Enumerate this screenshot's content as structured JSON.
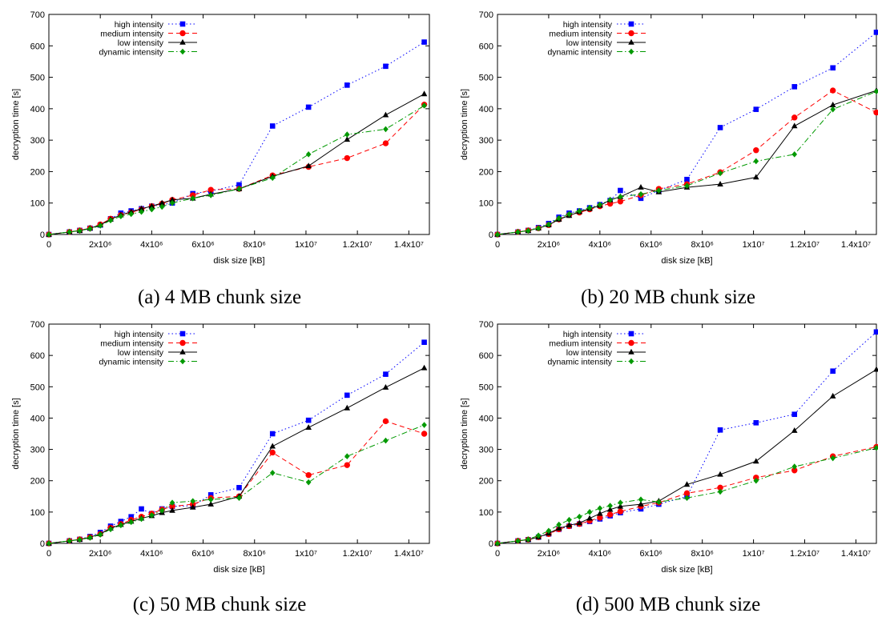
{
  "figure": {
    "captions": [
      "(a) 4 MB chunk size",
      "(b) 20 MB chunk size",
      "(c) 50 MB chunk size",
      "(d) 500 MB chunk size"
    ]
  },
  "colors": {
    "high intensity": "#0000ff",
    "medium intensity": "#ff0000",
    "low intensity": "#000000",
    "dynamic intensity": "#009900"
  },
  "chart_data": [
    {
      "type": "line",
      "caption": "(a) 4 MB chunk size",
      "xlabel": "disk size [kB]",
      "ylabel": "decryption time [s]",
      "xlim": [
        0,
        14800000
      ],
      "ylim": [
        0,
        700
      ],
      "xticks": [
        0,
        2000000,
        4000000,
        6000000,
        8000000,
        10000000,
        12000000,
        14000000
      ],
      "xtick_labels": [
        "0",
        "2x10⁶",
        "4x10⁶",
        "6x10⁶",
        "8x10⁶",
        "1x10⁷",
        "1.2x10⁷",
        "1.4x10⁷"
      ],
      "yticks": [
        0,
        100,
        200,
        300,
        400,
        500,
        600,
        700
      ],
      "ytick_labels": [
        "0",
        "100",
        "200",
        "300",
        "400",
        "500",
        "600",
        "700"
      ],
      "legend_position": "top-left",
      "series": [
        {
          "name": "high intensity",
          "style": "dotted",
          "marker": "square",
          "x": [
            0,
            800000,
            1200000,
            1600000,
            2000000,
            2400000,
            2800000,
            3200000,
            3600000,
            4000000,
            4400000,
            4800000,
            5600000,
            6300000,
            7400000,
            8700000,
            10100000,
            11600000,
            13100000,
            14600000
          ],
          "y": [
            0,
            8,
            13,
            20,
            30,
            50,
            68,
            75,
            82,
            90,
            95,
            100,
            130,
            138,
            158,
            345,
            405,
            475,
            535,
            612
          ]
        },
        {
          "name": "medium intensity",
          "style": "dashed",
          "marker": "circle",
          "x": [
            0,
            800000,
            1200000,
            1600000,
            2000000,
            2400000,
            2800000,
            3200000,
            3600000,
            4000000,
            4400000,
            4800000,
            5600000,
            6300000,
            7400000,
            8700000,
            10100000,
            11600000,
            13100000,
            14600000
          ],
          "y": [
            0,
            8,
            13,
            20,
            32,
            50,
            62,
            70,
            80,
            90,
            98,
            110,
            125,
            142,
            145,
            188,
            215,
            243,
            290,
            413
          ]
        },
        {
          "name": "low intensity",
          "style": "solid",
          "marker": "triangle",
          "x": [
            0,
            800000,
            1200000,
            1600000,
            2000000,
            2400000,
            2800000,
            3200000,
            3600000,
            4000000,
            4400000,
            4800000,
            5600000,
            6300000,
            7400000,
            8700000,
            10100000,
            11600000,
            13100000,
            14600000
          ],
          "y": [
            0,
            8,
            12,
            20,
            30,
            48,
            62,
            72,
            82,
            90,
            100,
            110,
            115,
            128,
            145,
            185,
            218,
            302,
            380,
            447
          ]
        },
        {
          "name": "dynamic intensity",
          "style": "dashdot",
          "marker": "diamond",
          "x": [
            0,
            800000,
            1200000,
            1600000,
            2000000,
            2400000,
            2800000,
            3200000,
            3600000,
            4000000,
            4400000,
            4800000,
            5600000,
            6300000,
            7400000,
            8700000,
            10100000,
            11600000,
            13100000,
            14600000
          ],
          "y": [
            0,
            8,
            12,
            18,
            28,
            45,
            58,
            65,
            72,
            80,
            88,
            100,
            115,
            125,
            145,
            180,
            255,
            318,
            335,
            410
          ]
        }
      ]
    },
    {
      "type": "line",
      "caption": "(b) 20 MB chunk size",
      "xlabel": "disk size [kB]",
      "ylabel": "decryption time [s]",
      "xlim": [
        0,
        14800000
      ],
      "ylim": [
        0,
        700
      ],
      "xticks": [
        0,
        2000000,
        4000000,
        6000000,
        8000000,
        10000000,
        12000000,
        14000000
      ],
      "xtick_labels": [
        "0",
        "2x10⁶",
        "4x10⁶",
        "6x10⁶",
        "8x10⁶",
        "1x10⁷",
        "1.2x10⁷",
        "1.4x10⁷"
      ],
      "yticks": [
        0,
        100,
        200,
        300,
        400,
        500,
        600,
        700
      ],
      "ytick_labels": [
        "0",
        "100",
        "200",
        "300",
        "400",
        "500",
        "600",
        "700"
      ],
      "legend_position": "top-left",
      "series": [
        {
          "name": "high intensity",
          "style": "dotted",
          "marker": "square",
          "x": [
            0,
            800000,
            1200000,
            1600000,
            2000000,
            2400000,
            2800000,
            3200000,
            3600000,
            4000000,
            4400000,
            4800000,
            5600000,
            6300000,
            7400000,
            8700000,
            10100000,
            11600000,
            13100000,
            14800000
          ],
          "y": [
            0,
            8,
            13,
            22,
            35,
            55,
            68,
            75,
            85,
            95,
            108,
            140,
            115,
            140,
            175,
            340,
            398,
            470,
            530,
            643
          ]
        },
        {
          "name": "medium intensity",
          "style": "dashed",
          "marker": "circle",
          "x": [
            0,
            800000,
            1200000,
            1600000,
            2000000,
            2400000,
            2800000,
            3200000,
            3600000,
            4000000,
            4400000,
            4800000,
            5600000,
            6300000,
            7400000,
            8700000,
            10100000,
            11600000,
            13100000,
            14800000
          ],
          "y": [
            0,
            8,
            13,
            20,
            30,
            48,
            62,
            70,
            80,
            90,
            98,
            105,
            125,
            145,
            160,
            198,
            268,
            372,
            458,
            388
          ]
        },
        {
          "name": "low intensity",
          "style": "solid",
          "marker": "triangle",
          "x": [
            0,
            800000,
            1200000,
            1600000,
            2000000,
            2400000,
            2800000,
            3200000,
            3600000,
            4000000,
            4400000,
            4800000,
            5600000,
            6300000,
            7400000,
            8700000,
            10100000,
            11600000,
            13100000,
            14800000
          ],
          "y": [
            0,
            8,
            12,
            20,
            30,
            48,
            60,
            72,
            82,
            92,
            110,
            120,
            150,
            135,
            150,
            160,
            182,
            345,
            412,
            458
          ]
        },
        {
          "name": "dynamic intensity",
          "style": "dashdot",
          "marker": "diamond",
          "x": [
            0,
            800000,
            1200000,
            1600000,
            2000000,
            2400000,
            2800000,
            3200000,
            3600000,
            4000000,
            4400000,
            4800000,
            5600000,
            6300000,
            7400000,
            8700000,
            10100000,
            11600000,
            13100000,
            14800000
          ],
          "y": [
            0,
            8,
            12,
            20,
            32,
            52,
            65,
            75,
            85,
            95,
            110,
            120,
            128,
            140,
            155,
            195,
            233,
            255,
            398,
            455
          ]
        }
      ]
    },
    {
      "type": "line",
      "caption": "(c) 50 MB chunk size",
      "xlabel": "disk size [kB]",
      "ylabel": "decryption time [s]",
      "xlim": [
        0,
        14800000
      ],
      "ylim": [
        0,
        700
      ],
      "xticks": [
        0,
        2000000,
        4000000,
        6000000,
        8000000,
        10000000,
        12000000,
        14000000
      ],
      "xtick_labels": [
        "0",
        "2x10⁶",
        "4x10⁶",
        "6x10⁶",
        "8x10⁶",
        "1x10⁷",
        "1.2x10⁷",
        "1.4x10⁷"
      ],
      "yticks": [
        0,
        100,
        200,
        300,
        400,
        500,
        600,
        700
      ],
      "ytick_labels": [
        "0",
        "100",
        "200",
        "300",
        "400",
        "500",
        "600",
        "700"
      ],
      "legend_position": "top-left",
      "series": [
        {
          "name": "high intensity",
          "style": "dotted",
          "marker": "square",
          "x": [
            0,
            800000,
            1200000,
            1600000,
            2000000,
            2400000,
            2800000,
            3200000,
            3600000,
            4000000,
            4400000,
            4800000,
            5600000,
            6300000,
            7400000,
            8700000,
            10100000,
            11600000,
            13100000,
            14600000
          ],
          "y": [
            0,
            8,
            13,
            22,
            35,
            55,
            70,
            85,
            110,
            95,
            110,
            118,
            120,
            155,
            178,
            350,
            393,
            473,
            540,
            642
          ]
        },
        {
          "name": "medium intensity",
          "style": "dashed",
          "marker": "circle",
          "x": [
            0,
            800000,
            1200000,
            1600000,
            2000000,
            2400000,
            2800000,
            3200000,
            3600000,
            4000000,
            4400000,
            4800000,
            5600000,
            6300000,
            7400000,
            8700000,
            10100000,
            11600000,
            13100000,
            14600000
          ],
          "y": [
            0,
            8,
            13,
            20,
            30,
            50,
            62,
            75,
            85,
            95,
            108,
            118,
            125,
            145,
            150,
            290,
            218,
            250,
            390,
            350
          ]
        },
        {
          "name": "low intensity",
          "style": "solid",
          "marker": "triangle",
          "x": [
            0,
            800000,
            1200000,
            1600000,
            2000000,
            2400000,
            2800000,
            3200000,
            3600000,
            4000000,
            4400000,
            4800000,
            5600000,
            6300000,
            7400000,
            8700000,
            10100000,
            11600000,
            13100000,
            14600000
          ],
          "y": [
            0,
            8,
            12,
            20,
            30,
            48,
            60,
            70,
            80,
            88,
            98,
            105,
            115,
            125,
            150,
            310,
            370,
            432,
            498,
            560
          ]
        },
        {
          "name": "dynamic intensity",
          "style": "dashdot",
          "marker": "diamond",
          "x": [
            0,
            800000,
            1200000,
            1600000,
            2000000,
            2400000,
            2800000,
            3200000,
            3600000,
            4000000,
            4400000,
            4800000,
            5600000,
            6300000,
            7400000,
            8700000,
            10100000,
            11600000,
            13100000,
            14600000
          ],
          "y": [
            0,
            8,
            12,
            18,
            28,
            45,
            58,
            68,
            78,
            90,
            105,
            130,
            135,
            140,
            145,
            225,
            195,
            278,
            328,
            378
          ]
        }
      ]
    },
    {
      "type": "line",
      "caption": "(d) 500 MB chunk size",
      "xlabel": "disk size [kB]",
      "ylabel": "decryption time [s]",
      "xlim": [
        0,
        14800000
      ],
      "ylim": [
        0,
        700
      ],
      "xticks": [
        0,
        2000000,
        4000000,
        6000000,
        8000000,
        10000000,
        12000000,
        14000000
      ],
      "xtick_labels": [
        "0",
        "2x10⁶",
        "4x10⁶",
        "6x10⁶",
        "8x10⁶",
        "1x10⁷",
        "1.2x10⁷",
        "1.4x10⁷"
      ],
      "yticks": [
        0,
        100,
        200,
        300,
        400,
        500,
        600,
        700
      ],
      "ytick_labels": [
        "0",
        "100",
        "200",
        "300",
        "400",
        "500",
        "600",
        "700"
      ],
      "legend_position": "top-left",
      "series": [
        {
          "name": "high intensity",
          "style": "dotted",
          "marker": "square",
          "x": [
            0,
            800000,
            1200000,
            1600000,
            2000000,
            2400000,
            2800000,
            3200000,
            3600000,
            4000000,
            4400000,
            4800000,
            5600000,
            6300000,
            7400000,
            8700000,
            10100000,
            11600000,
            13100000,
            14800000
          ],
          "y": [
            0,
            8,
            12,
            20,
            30,
            45,
            55,
            62,
            70,
            78,
            88,
            98,
            110,
            125,
            150,
            362,
            385,
            412,
            550,
            675
          ]
        },
        {
          "name": "medium intensity",
          "style": "dashed",
          "marker": "circle",
          "x": [
            0,
            800000,
            1200000,
            1600000,
            2000000,
            2400000,
            2800000,
            3200000,
            3600000,
            4000000,
            4400000,
            4800000,
            5600000,
            6300000,
            7400000,
            8700000,
            10100000,
            11600000,
            13100000,
            14800000
          ],
          "y": [
            0,
            8,
            12,
            20,
            30,
            45,
            55,
            62,
            72,
            82,
            92,
            102,
            118,
            130,
            160,
            178,
            210,
            233,
            278,
            308
          ]
        },
        {
          "name": "low intensity",
          "style": "solid",
          "marker": "triangle",
          "x": [
            0,
            800000,
            1200000,
            1600000,
            2000000,
            2400000,
            2800000,
            3200000,
            3600000,
            4000000,
            4400000,
            4800000,
            5600000,
            6300000,
            7400000,
            8700000,
            10100000,
            11600000,
            13100000,
            14800000
          ],
          "y": [
            0,
            8,
            12,
            20,
            32,
            48,
            58,
            65,
            80,
            95,
            108,
            118,
            125,
            135,
            188,
            220,
            262,
            360,
            470,
            555
          ]
        },
        {
          "name": "dynamic intensity",
          "style": "dashdot",
          "marker": "diamond",
          "x": [
            0,
            800000,
            1200000,
            1600000,
            2000000,
            2400000,
            2800000,
            3200000,
            3600000,
            4000000,
            4400000,
            4800000,
            5600000,
            6300000,
            7400000,
            8700000,
            10100000,
            11600000,
            13100000,
            14800000
          ],
          "y": [
            0,
            8,
            13,
            25,
            40,
            60,
            75,
            85,
            100,
            112,
            120,
            130,
            140,
            132,
            145,
            165,
            200,
            245,
            272,
            305
          ]
        }
      ]
    }
  ]
}
